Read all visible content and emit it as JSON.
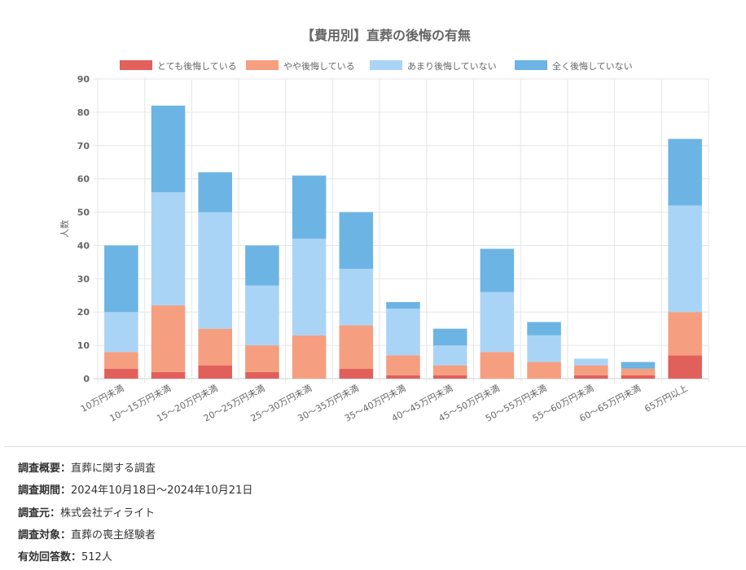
{
  "chart_data": {
    "type": "bar",
    "stacked": true,
    "title": "【費用別】直葬の後悔の有無",
    "ylabel": "人数",
    "xlabel": "",
    "ylim": [
      0,
      90
    ],
    "yticks": [
      0,
      10,
      20,
      30,
      40,
      50,
      60,
      70,
      80,
      90
    ],
    "grid": true,
    "legend_position": "top",
    "categories": [
      "10万円未満",
      "10〜15万円未満",
      "15〜20万円未満",
      "20〜25万円未満",
      "25〜30万円未満",
      "30〜35万円未満",
      "35〜40万円未満",
      "40〜45万円未満",
      "45〜50万円未満",
      "50〜55万円未満",
      "55〜60万円未満",
      "60〜65万円未満",
      "65万円以上"
    ],
    "series": [
      {
        "name": "とても後悔している",
        "color": "#e2605b",
        "values": [
          3,
          2,
          4,
          2,
          0,
          3,
          1,
          1,
          0,
          0,
          1,
          1,
          7
        ]
      },
      {
        "name": "やや後悔している",
        "color": "#f59e80",
        "values": [
          5,
          20,
          11,
          8,
          13,
          13,
          6,
          3,
          8,
          5,
          3,
          2,
          13
        ]
      },
      {
        "name": "あまり後悔していない",
        "color": "#aad4f6",
        "values": [
          12,
          34,
          35,
          18,
          29,
          17,
          14,
          6,
          18,
          8,
          2,
          0,
          32
        ]
      },
      {
        "name": "全く後悔していない",
        "color": "#6cb4e4",
        "values": [
          20,
          26,
          12,
          12,
          19,
          17,
          2,
          5,
          13,
          4,
          0,
          2,
          20
        ]
      }
    ]
  },
  "footer": [
    {
      "label": "調査概要：",
      "value": "直葬に関する調査"
    },
    {
      "label": "調査期間：",
      "value": "2024年10月18日〜2024年10月21日"
    },
    {
      "label": "調査元：",
      "value": "株式会社ディライト"
    },
    {
      "label": "調査対象：",
      "value": "直葬の喪主経験者"
    },
    {
      "label": "有効回答数：",
      "value": "512人"
    }
  ]
}
